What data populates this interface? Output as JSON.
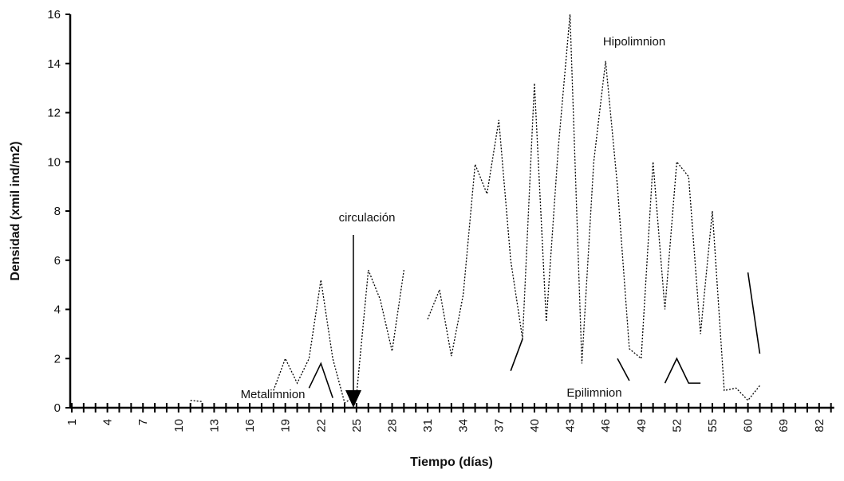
{
  "chart_data": {
    "type": "line",
    "x_label": "Tiempo (días)",
    "y_label": "Densidad (xmil ind/m2)",
    "annotation": "circulación",
    "categories": [
      1,
      null,
      null,
      4,
      null,
      null,
      7,
      null,
      null,
      10,
      null,
      null,
      13,
      null,
      null,
      16,
      null,
      null,
      19,
      null,
      null,
      22,
      null,
      null,
      25,
      null,
      null,
      28,
      null,
      null,
      31,
      null,
      null,
      34,
      null,
      null,
      37,
      null,
      null,
      40,
      null,
      null,
      43,
      null,
      null,
      46,
      null,
      null,
      49,
      null,
      null,
      52,
      null,
      null,
      55,
      null,
      null,
      60,
      null,
      null,
      69,
      null,
      null,
      82,
      null
    ],
    "ylim": [
      0,
      16
    ],
    "yticks": [
      0,
      2,
      4,
      6,
      8,
      10,
      12,
      14,
      16
    ],
    "series": [
      {
        "name": "Hipolimnion",
        "color": "#000000",
        "style": "dotted",
        "values": [
          null,
          null,
          null,
          null,
          null,
          null,
          null,
          null,
          null,
          null,
          0.3,
          0.25,
          null,
          null,
          null,
          null,
          null,
          0.7,
          2.0,
          1.0,
          2.0,
          5.2,
          2.0,
          0.2,
          0.5,
          5.6,
          4.4,
          2.3,
          5.6,
          null,
          3.6,
          4.8,
          2.1,
          4.6,
          9.9,
          8.7,
          11.7,
          6.0,
          2.8,
          13.2,
          3.5,
          10.5,
          16.0,
          1.8,
          10.0,
          14.1,
          9.0,
          2.4,
          2.0,
          10.0,
          4.0,
          10.0,
          9.4,
          3.0,
          8.0,
          0.7,
          0.8,
          0.3,
          0.9,
          null,
          null,
          null,
          null,
          null,
          null
        ]
      },
      {
        "name": "Metalimnion",
        "color": "#000000",
        "style": "solid",
        "values": [
          null,
          null,
          null,
          null,
          null,
          null,
          null,
          null,
          null,
          null,
          null,
          null,
          null,
          null,
          null,
          null,
          null,
          null,
          null,
          null,
          0.8,
          1.8,
          0.4,
          null,
          null,
          null,
          null,
          null,
          null,
          null,
          null,
          null,
          null,
          null,
          null,
          null,
          null,
          null,
          null,
          null,
          null,
          null,
          null,
          null,
          null,
          null,
          null,
          null,
          null,
          null,
          null,
          null,
          null,
          null,
          null,
          null,
          null,
          null,
          null,
          null,
          null,
          null,
          null,
          null,
          null
        ]
      },
      {
        "name": "Epilimnion",
        "color": "#000000",
        "style": "solid",
        "values": [
          null,
          null,
          null,
          null,
          null,
          null,
          null,
          null,
          null,
          null,
          null,
          null,
          null,
          null,
          null,
          null,
          null,
          null,
          null,
          null,
          null,
          null,
          null,
          null,
          null,
          null,
          null,
          null,
          null,
          null,
          null,
          null,
          null,
          null,
          null,
          null,
          null,
          1.5,
          2.8,
          null,
          null,
          null,
          null,
          null,
          null,
          null,
          2.0,
          1.1,
          null,
          null,
          1.0,
          2.0,
          1.0,
          1.0,
          null,
          null,
          null,
          5.5,
          2.2,
          null,
          null,
          null,
          null,
          null,
          null
        ]
      }
    ]
  }
}
